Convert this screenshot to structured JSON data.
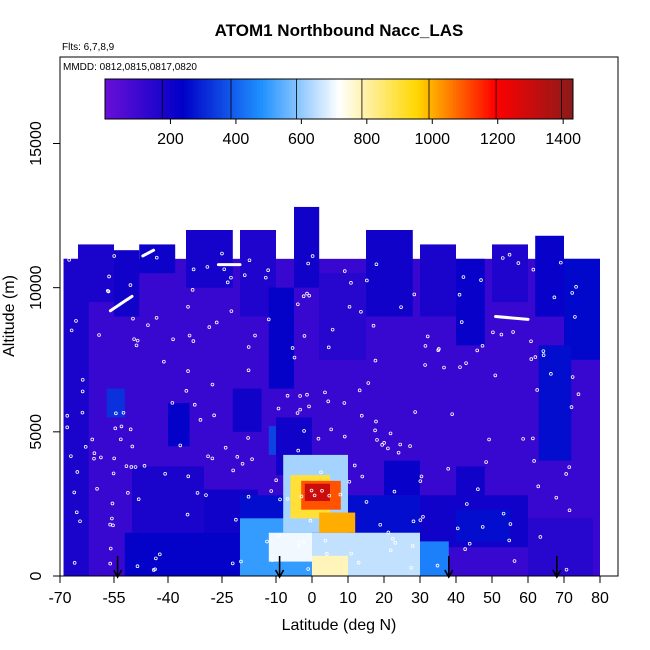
{
  "chart_data": {
    "type": "heatmap",
    "title": "ATOM1 Northbound Nacc_LAS",
    "flights_note": "Flts: 6,7,8,9",
    "dates_note": "MMDD: 0812,0815,0817,0820",
    "xlabel": "Latitude (deg N)",
    "ylabel": "Altitude (m)",
    "xlim": [
      -70,
      85
    ],
    "ylim": [
      0,
      18000
    ],
    "xticks": [
      -70,
      -55,
      -40,
      -25,
      -10,
      0,
      10,
      20,
      30,
      40,
      50,
      60,
      70,
      80
    ],
    "yticks": [
      0,
      5000,
      10000,
      15000
    ],
    "colorbar": {
      "range": [
        0,
        1430
      ],
      "ticks": [
        200,
        400,
        600,
        800,
        1000,
        1200,
        1400
      ],
      "colors": [
        "#6a0fd6",
        "#0000c8",
        "#1e90ff",
        "#ffffff",
        "#ffd700",
        "#ff0000",
        "#8b1a1a"
      ],
      "boundaries": [
        175,
        385,
        585,
        785,
        990,
        1195,
        1395
      ]
    },
    "profile_arrows_lat": [
      -54,
      -9,
      38,
      68
    ],
    "cells": [
      {
        "lat": [
          -69,
          80
        ],
        "alt": [
          0,
          11000
        ],
        "value": 110
      },
      {
        "lat": [
          -69,
          -62
        ],
        "alt": [
          0,
          11000
        ],
        "value": 180
      },
      {
        "lat": [
          -65,
          -55
        ],
        "alt": [
          9500,
          11500
        ],
        "value": 180
      },
      {
        "lat": [
          -55,
          -48
        ],
        "alt": [
          9000,
          11300
        ],
        "value": 200
      },
      {
        "lat": [
          -48,
          -38
        ],
        "alt": [
          10500,
          11500
        ],
        "value": 210
      },
      {
        "lat": [
          -35,
          -22
        ],
        "alt": [
          10000,
          12000
        ],
        "value": 190
      },
      {
        "lat": [
          -20,
          -10
        ],
        "alt": [
          9000,
          12000
        ],
        "value": 170
      },
      {
        "lat": [
          -12,
          -5
        ],
        "alt": [
          6500,
          10000
        ],
        "value": 230
      },
      {
        "lat": [
          -5,
          2
        ],
        "alt": [
          10000,
          12800
        ],
        "value": 200
      },
      {
        "lat": [
          2,
          15
        ],
        "alt": [
          7500,
          10500
        ],
        "value": 150
      },
      {
        "lat": [
          15,
          28
        ],
        "alt": [
          9000,
          12000
        ],
        "value": 200
      },
      {
        "lat": [
          30,
          40
        ],
        "alt": [
          9000,
          11500
        ],
        "value": 180
      },
      {
        "lat": [
          40,
          48
        ],
        "alt": [
          8000,
          11000
        ],
        "value": 220
      },
      {
        "lat": [
          50,
          60
        ],
        "alt": [
          9500,
          11500
        ],
        "value": 170
      },
      {
        "lat": [
          62,
          70
        ],
        "alt": [
          9000,
          11800
        ],
        "value": 220
      },
      {
        "lat": [
          70,
          80
        ],
        "alt": [
          7500,
          11000
        ],
        "value": 250
      },
      {
        "lat": [
          -57,
          -52
        ],
        "alt": [
          5500,
          6500
        ],
        "value": 320
      },
      {
        "lat": [
          -40,
          -34
        ],
        "alt": [
          4500,
          6000
        ],
        "value": 230
      },
      {
        "lat": [
          -22,
          -14
        ],
        "alt": [
          5000,
          6500
        ],
        "value": 200
      },
      {
        "lat": [
          -12,
          -8
        ],
        "alt": [
          4200,
          5200
        ],
        "value": 350
      },
      {
        "lat": [
          -10,
          0
        ],
        "alt": [
          3500,
          5500
        ],
        "value": 200
      },
      {
        "lat": [
          20,
          30
        ],
        "alt": [
          2800,
          4000
        ],
        "value": 220
      },
      {
        "lat": [
          40,
          48
        ],
        "alt": [
          2800,
          3800
        ],
        "value": 200
      },
      {
        "lat": [
          -50,
          -30
        ],
        "alt": [
          1500,
          3800
        ],
        "value": 180
      },
      {
        "lat": [
          -30,
          -15
        ],
        "alt": [
          1200,
          3000
        ],
        "value": 200
      },
      {
        "lat": [
          -52,
          -20
        ],
        "alt": [
          0,
          1500
        ],
        "value": 230
      },
      {
        "lat": [
          -20,
          30
        ],
        "alt": [
          1500,
          2800
        ],
        "value": 260
      },
      {
        "lat": [
          30,
          60
        ],
        "alt": [
          1000,
          2800
        ],
        "value": 200
      },
      {
        "lat": [
          40,
          55
        ],
        "alt": [
          1200,
          2300
        ],
        "value": 260
      },
      {
        "lat": [
          -20,
          0
        ],
        "alt": [
          0,
          2000
        ],
        "value": 500
      },
      {
        "lat": [
          0,
          30
        ],
        "alt": [
          0,
          1500
        ],
        "value": 650
      },
      {
        "lat": [
          -12,
          0
        ],
        "alt": [
          500,
          1500
        ],
        "value": 700
      },
      {
        "lat": [
          0,
          10
        ],
        "alt": [
          0,
          700
        ],
        "value": 780
      },
      {
        "lat": [
          -8,
          10
        ],
        "alt": [
          1500,
          4200
        ],
        "value": 620
      },
      {
        "lat": [
          -6,
          5
        ],
        "alt": [
          2000,
          3500
        ],
        "value": 900
      },
      {
        "lat": [
          -3,
          8
        ],
        "alt": [
          2300,
          3300
        ],
        "value": 1100
      },
      {
        "lat": [
          -2,
          5
        ],
        "alt": [
          2600,
          3200
        ],
        "value": 1300
      },
      {
        "lat": [
          2,
          12
        ],
        "alt": [
          1500,
          2200
        ],
        "value": 1000
      },
      {
        "lat": [
          30,
          38
        ],
        "alt": [
          0,
          1200
        ],
        "value": 450
      },
      {
        "lat": [
          60,
          78
        ],
        "alt": [
          0,
          2000
        ],
        "value": 150
      },
      {
        "lat": [
          63,
          72
        ],
        "alt": [
          4000,
          8000
        ],
        "value": 260
      }
    ]
  }
}
